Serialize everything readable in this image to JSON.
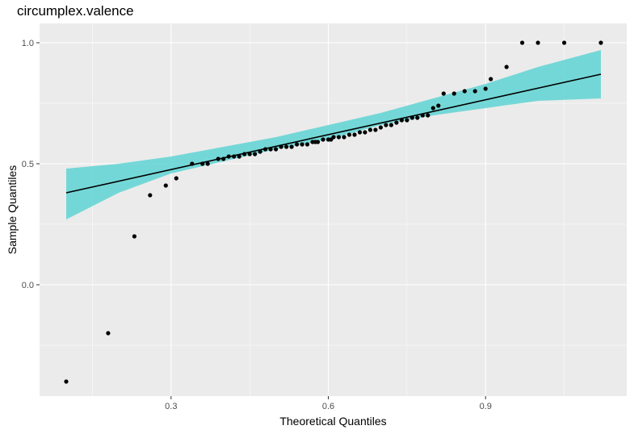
{
  "chart_data": {
    "type": "scatter",
    "title": "circumplex.valence",
    "xlabel": "Theoretical Quantiles",
    "ylabel": "Sample Quantiles",
    "xlim": [
      0.1,
      1.13
    ],
    "ylim": [
      -0.45,
      1.05
    ],
    "x_ticks": [
      0.3,
      0.6,
      0.9
    ],
    "x_tick_labels": [
      "0.3",
      "0.6",
      "0.9"
    ],
    "y_ticks": [
      0.0,
      0.5,
      1.0
    ],
    "y_tick_labels": [
      "0.0",
      "0.5",
      "1.0"
    ],
    "grid": true,
    "colors": {
      "panel": "#ebebeb",
      "grid": "#ffffff",
      "band": "#5fd3d3",
      "points": "#000000",
      "line": "#000000"
    },
    "reference_line": {
      "x": [
        0.1,
        1.12
      ],
      "y": [
        0.38,
        0.87
      ]
    },
    "confidence_band": {
      "x": [
        0.1,
        0.2,
        0.3,
        0.4,
        0.5,
        0.6,
        0.7,
        0.8,
        0.9,
        1.0,
        1.12
      ],
      "lower": [
        0.27,
        0.38,
        0.46,
        0.51,
        0.56,
        0.6,
        0.66,
        0.7,
        0.73,
        0.76,
        0.77
      ],
      "upper": [
        0.48,
        0.5,
        0.53,
        0.57,
        0.61,
        0.66,
        0.71,
        0.77,
        0.83,
        0.9,
        0.97
      ]
    },
    "series": [
      {
        "points": [
          [
            0.1,
            -0.4
          ],
          [
            0.18,
            -0.2
          ],
          [
            0.23,
            0.2
          ],
          [
            0.26,
            0.37
          ],
          [
            0.29,
            0.41
          ],
          [
            0.31,
            0.44
          ],
          [
            0.34,
            0.5
          ],
          [
            0.36,
            0.5
          ],
          [
            0.37,
            0.5
          ],
          [
            0.39,
            0.52
          ],
          [
            0.4,
            0.52
          ],
          [
            0.41,
            0.53
          ],
          [
            0.42,
            0.53
          ],
          [
            0.43,
            0.53
          ],
          [
            0.44,
            0.54
          ],
          [
            0.45,
            0.54
          ],
          [
            0.46,
            0.54
          ],
          [
            0.47,
            0.55
          ],
          [
            0.48,
            0.56
          ],
          [
            0.49,
            0.56
          ],
          [
            0.5,
            0.56
          ],
          [
            0.51,
            0.57
          ],
          [
            0.52,
            0.57
          ],
          [
            0.53,
            0.57
          ],
          [
            0.54,
            0.58
          ],
          [
            0.55,
            0.58
          ],
          [
            0.56,
            0.58
          ],
          [
            0.57,
            0.59
          ],
          [
            0.575,
            0.59
          ],
          [
            0.58,
            0.59
          ],
          [
            0.59,
            0.6
          ],
          [
            0.6,
            0.6
          ],
          [
            0.605,
            0.6
          ],
          [
            0.61,
            0.61
          ],
          [
            0.62,
            0.61
          ],
          [
            0.63,
            0.61
          ],
          [
            0.64,
            0.62
          ],
          [
            0.65,
            0.62
          ],
          [
            0.66,
            0.63
          ],
          [
            0.67,
            0.63
          ],
          [
            0.68,
            0.64
          ],
          [
            0.69,
            0.64
          ],
          [
            0.7,
            0.65
          ],
          [
            0.71,
            0.66
          ],
          [
            0.72,
            0.66
          ],
          [
            0.73,
            0.67
          ],
          [
            0.74,
            0.68
          ],
          [
            0.75,
            0.68
          ],
          [
            0.76,
            0.69
          ],
          [
            0.77,
            0.69
          ],
          [
            0.78,
            0.7
          ],
          [
            0.79,
            0.7
          ],
          [
            0.8,
            0.73
          ],
          [
            0.81,
            0.74
          ],
          [
            0.82,
            0.79
          ],
          [
            0.84,
            0.79
          ],
          [
            0.86,
            0.8
          ],
          [
            0.88,
            0.8
          ],
          [
            0.9,
            0.81
          ],
          [
            0.91,
            0.85
          ],
          [
            0.94,
            0.9
          ],
          [
            0.97,
            1.0
          ],
          [
            1.0,
            1.0
          ],
          [
            1.05,
            1.0
          ],
          [
            1.12,
            1.0
          ]
        ]
      }
    ]
  }
}
